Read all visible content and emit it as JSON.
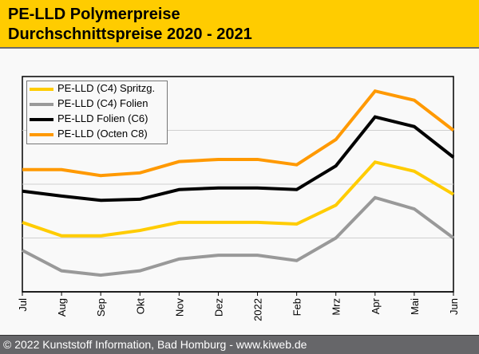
{
  "header": {
    "title": "PE-LLD Polymerpreise",
    "subtitle": "Durchschnittspreise 2020 - 2021"
  },
  "footer": {
    "text": "© 2022 Kunststoff Information, Bad Homburg - www.kiweb.de"
  },
  "colors": {
    "header_bg": "#FFCC00",
    "footer_bg": "#666669",
    "plot_bg": "#F9F9F9",
    "gridline": "#D0D0D0"
  },
  "chart_data": {
    "type": "line",
    "title": "PE-LLD Polymerpreise",
    "subtitle": "Durchschnittspreise 2020 - 2021",
    "xlabel": "",
    "ylabel": "",
    "y_units": "relative (no y-axis labels shown; gridlines at 1, 2, 3)",
    "ylim": [
      0,
      4
    ],
    "grid": "horizontal",
    "legend_position": "top-left",
    "categories": [
      "Jul",
      "Aug",
      "Sep",
      "Okt",
      "Nov",
      "Dez",
      "2022",
      "Feb",
      "Mrz",
      "Apr",
      "Mai",
      "Jun"
    ],
    "series": [
      {
        "name": "PE-LLD (C4) Spritzg.",
        "color": "#FFCC00",
        "values": [
          1.29,
          1.04,
          1.04,
          1.14,
          1.29,
          1.29,
          1.29,
          1.26,
          1.61,
          2.41,
          2.24,
          1.81
        ]
      },
      {
        "name": "PE-LLD (C4) Folien",
        "color": "#999999",
        "values": [
          0.77,
          0.39,
          0.31,
          0.39,
          0.61,
          0.68,
          0.68,
          0.58,
          1.0,
          1.75,
          1.54,
          1.0
        ]
      },
      {
        "name": "PE-LLD Folien (C6)",
        "color": "#000000",
        "values": [
          1.87,
          1.78,
          1.7,
          1.72,
          1.9,
          1.93,
          1.93,
          1.9,
          2.34,
          3.25,
          3.07,
          2.5
        ]
      },
      {
        "name": "PE-LLD (Octen C8)",
        "color": "#FF9900",
        "values": [
          2.27,
          2.27,
          2.16,
          2.21,
          2.42,
          2.46,
          2.46,
          2.36,
          2.83,
          3.73,
          3.56,
          3.0
        ]
      }
    ]
  }
}
